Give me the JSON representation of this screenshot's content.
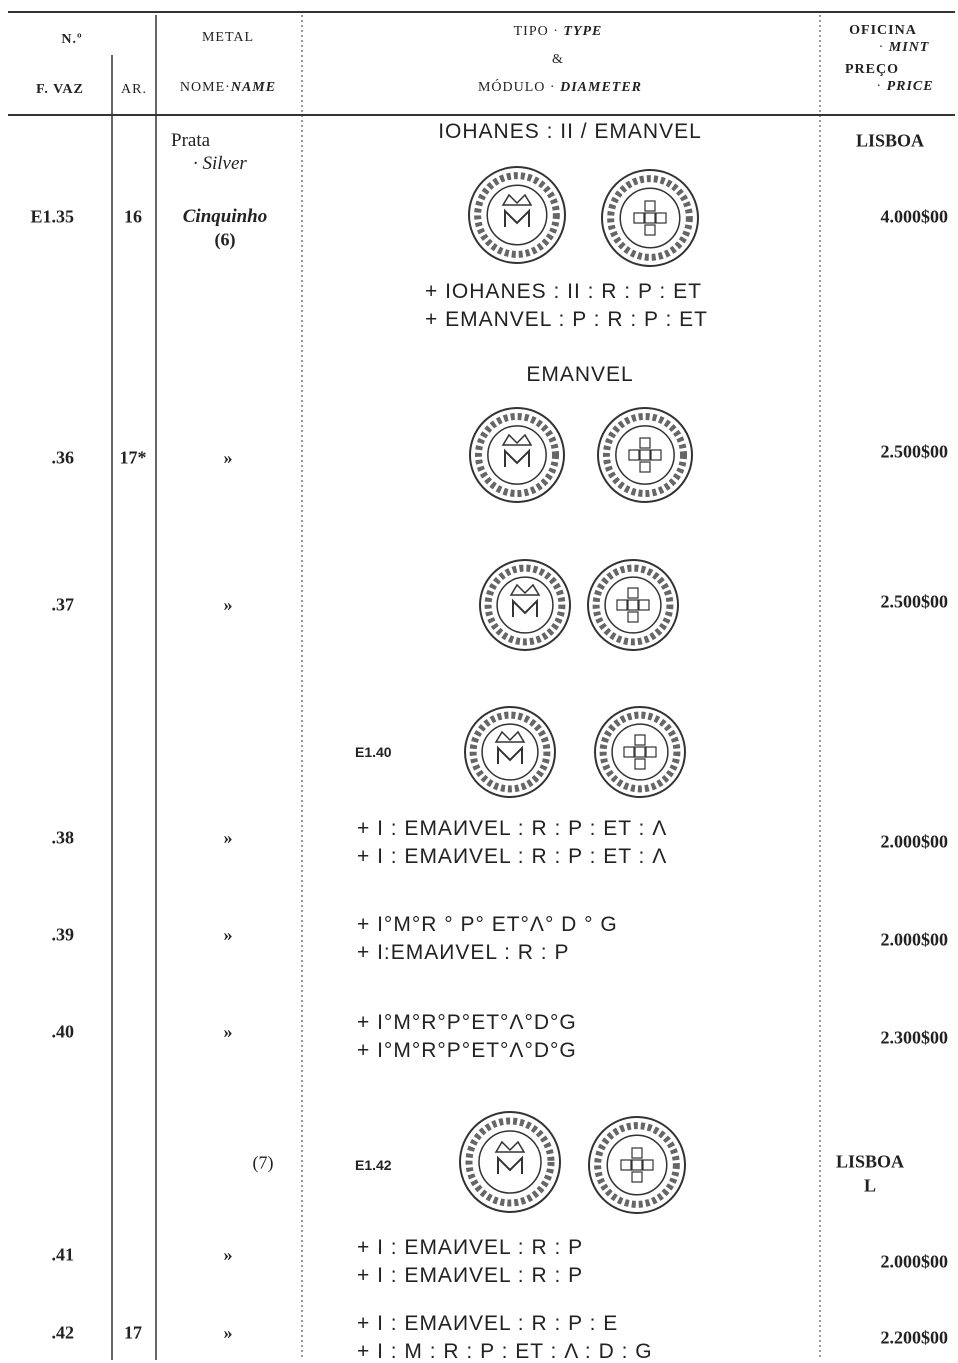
{
  "header": {
    "no": "N.º",
    "fvaz": "F. VAZ",
    "ar": "AR.",
    "metal": "METAL",
    "nome": "NOME",
    "name": "NAME",
    "tipo": "TIPO",
    "type": "TYPE",
    "and": "&",
    "modulo": "MÓDULO",
    "diameter": "DIAMETER",
    "oficina": "OFICINA",
    "mint": "MINT",
    "preco": "PREÇO",
    "price": "PRICE",
    "dot": "·"
  },
  "metal": {
    "pt": "Prata",
    "en": "Silver"
  },
  "sections": [
    {
      "title": "IOHANES : II / EMANVEL",
      "mint": "LISBOA"
    },
    {
      "title": "EMANVEL"
    }
  ],
  "figures": [
    "E1.40",
    "E1.42"
  ],
  "group_note": "(7)",
  "group_mint": [
    "LISBOA",
    "L"
  ],
  "entries": [
    {
      "fvaz": "E1.35",
      "ar": "16",
      "name": "Cinquinho",
      "note": "(6)",
      "legends": [
        "+ IOHANES : II : R : P : ET",
        "+ EMANVEL : P : R : P : ET"
      ],
      "price": "4.000$00"
    },
    {
      "fvaz": ".36",
      "ar": "17*",
      "name": "»",
      "price": "2.500$00"
    },
    {
      "fvaz": ".37",
      "name": "»",
      "price": "2.500$00"
    },
    {
      "fvaz": ".38",
      "name": "»",
      "legends": [
        "+ I : EMAИVEL : R : P : ET : Λ",
        "+ I : EMAИVEL : R : P : ET : Λ"
      ],
      "price": "2.000$00"
    },
    {
      "fvaz": ".39",
      "name": "»",
      "legends": [
        "+ I°M°R ° P° ET°Λ° D ° G",
        "+ I:EMAИVEL : R : P"
      ],
      "price": "2.000$00"
    },
    {
      "fvaz": ".40",
      "name": "»",
      "legends": [
        "+ I°M°R°P°ET°Λ°D°G",
        "+ I°M°R°P°ET°Λ°D°G"
      ],
      "price": "2.300$00"
    },
    {
      "fvaz": ".41",
      "name": "»",
      "legends": [
        "+ I : EMAИVEL : R : P",
        "+ I : EMAИVEL : R : P"
      ],
      "price": "2.000$00"
    },
    {
      "fvaz": ".42",
      "ar": "17",
      "name": "»",
      "legends": [
        "+ I : EMAИVEL : R : P : E",
        "+ I : M : R : P : ET : Λ : D : G"
      ],
      "price": "2.200$00"
    }
  ]
}
